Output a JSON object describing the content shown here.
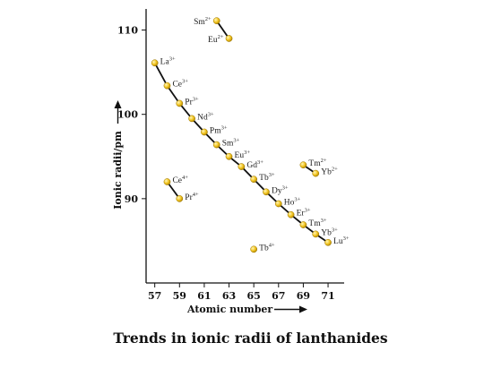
{
  "chart_data": {
    "type": "scatter",
    "title": "Trends in ionic radii of lanthanides",
    "xlabel": "Atomic number",
    "ylabel": "Ionic radii/pm",
    "xlim": [
      56.3,
      72.3
    ],
    "ylim": [
      80,
      112.5
    ],
    "xticks": [
      57,
      59,
      61,
      63,
      65,
      67,
      69,
      71
    ],
    "yticks": [
      90,
      100,
      110
    ],
    "grid": false,
    "legend": "none",
    "point_color": "#f3c623",
    "series": [
      {
        "charge": "3+",
        "connected": true,
        "points": [
          {
            "element": "La",
            "charge": "3+",
            "x": 57,
            "y": 106.1
          },
          {
            "element": "Ce",
            "charge": "3+",
            "x": 58,
            "y": 103.4
          },
          {
            "element": "Pr",
            "charge": "3+",
            "x": 59,
            "y": 101.3
          },
          {
            "element": "Nd",
            "charge": "3+",
            "x": 60,
            "y": 99.5
          },
          {
            "element": "Pm",
            "charge": "3+",
            "x": 61,
            "y": 97.9
          },
          {
            "element": "Sm",
            "charge": "3+",
            "x": 62,
            "y": 96.4
          },
          {
            "element": "Eu",
            "charge": "3+",
            "x": 63,
            "y": 95.0
          },
          {
            "element": "Gd",
            "charge": "3+",
            "x": 64,
            "y": 93.8
          },
          {
            "element": "Tb",
            "charge": "3+",
            "x": 65,
            "y": 92.3
          },
          {
            "element": "Dy",
            "charge": "3+",
            "x": 66,
            "y": 90.8
          },
          {
            "element": "Ho",
            "charge": "3+",
            "x": 67,
            "y": 89.4
          },
          {
            "element": "Er",
            "charge": "3+",
            "x": 68,
            "y": 88.1
          },
          {
            "element": "Tm",
            "charge": "3+",
            "x": 69,
            "y": 86.9
          },
          {
            "element": "Yb",
            "charge": "3+",
            "x": 70,
            "y": 85.8
          },
          {
            "element": "Lu",
            "charge": "3+",
            "x": 71,
            "y": 84.8
          }
        ]
      },
      {
        "charge": "2+",
        "connected": true,
        "points": [
          {
            "element": "Sm",
            "charge": "2+",
            "x": 62,
            "y": 111.1
          },
          {
            "element": "Eu",
            "charge": "2+",
            "x": 63,
            "y": 109.0
          }
        ]
      },
      {
        "charge": "2+",
        "connected": true,
        "points": [
          {
            "element": "Tm",
            "charge": "2+",
            "x": 69,
            "y": 94.0
          },
          {
            "element": "Yb",
            "charge": "2+",
            "x": 70,
            "y": 93.0
          }
        ]
      },
      {
        "charge": "4+",
        "connected": true,
        "points": [
          {
            "element": "Ce",
            "charge": "4+",
            "x": 58,
            "y": 92.0
          },
          {
            "element": "Pr",
            "charge": "4+",
            "x": 59,
            "y": 90.0
          }
        ]
      },
      {
        "charge": "4+",
        "connected": false,
        "points": [
          {
            "element": "Tb",
            "charge": "4+",
            "x": 65,
            "y": 84.0
          }
        ]
      }
    ]
  }
}
